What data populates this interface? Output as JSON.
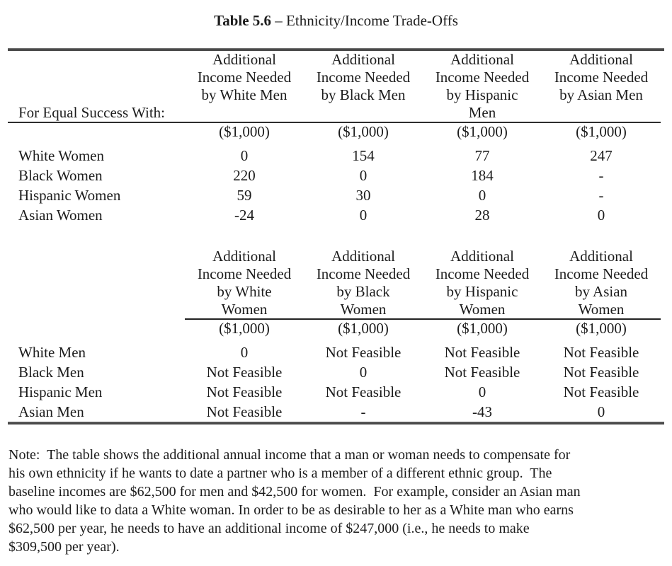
{
  "title": {
    "number": "Table 5.6",
    "rest": " – Ethnicity/Income Trade-Offs"
  },
  "table_men": {
    "row_group_header": "For Equal Success With:",
    "col_headers": [
      [
        "Additional",
        "Income Needed",
        "by White Men"
      ],
      [
        "Additional",
        "Income Needed",
        "by Black Men"
      ],
      [
        "Additional",
        "Income Needed",
        "by Hispanic",
        "Men"
      ],
      [
        "Additional",
        "Income Needed",
        "by Asian Men"
      ]
    ],
    "unit": "($1,000)",
    "rows": [
      {
        "label": "White Women",
        "values": [
          "0",
          "154",
          "77",
          "247"
        ]
      },
      {
        "label": "Black Women",
        "values": [
          "220",
          "0",
          "184",
          "-"
        ]
      },
      {
        "label": "Hispanic Women",
        "values": [
          "59",
          "30",
          "0",
          "-"
        ]
      },
      {
        "label": "Asian Women",
        "values": [
          "-24",
          "0",
          "28",
          "0"
        ]
      }
    ]
  },
  "table_women": {
    "col_headers": [
      [
        "Additional",
        "Income Needed",
        "by White",
        "Women"
      ],
      [
        "Additional",
        "Income Needed",
        "by Black",
        "Women"
      ],
      [
        "Additional",
        "Income Needed",
        "by Hispanic",
        "Women"
      ],
      [
        "Additional",
        "Income Needed",
        "by Asian",
        "Women"
      ]
    ],
    "unit": "($1,000)",
    "rows": [
      {
        "label": "White Men",
        "values": [
          "0",
          "Not Feasible",
          "Not Feasible",
          "Not Feasible"
        ]
      },
      {
        "label": "Black Men",
        "values": [
          "Not Feasible",
          "0",
          "Not Feasible",
          "Not Feasible"
        ]
      },
      {
        "label": "Hispanic Men",
        "values": [
          "Not Feasible",
          "Not Feasible",
          "0",
          "Not Feasible"
        ]
      },
      {
        "label": "Asian Men",
        "values": [
          "Not Feasible",
          "-",
          "-43",
          "0"
        ]
      }
    ]
  },
  "note_lines": [
    "Note:  The table shows the additional annual income that a man or woman needs to compensate for",
    "his own ethnicity if he wants to date a partner who is a member of a different ethnic group.  The",
    "baseline incomes are $62,500 for men and $42,500 for women.  For example, consider an Asian man",
    "who would like to data a White woman. In order to be as desirable to her as a White man who earns",
    "$62,500 per year, he needs to have an additional income of $247,000 (i.e., he needs to make",
    "$309,500 per year)."
  ]
}
